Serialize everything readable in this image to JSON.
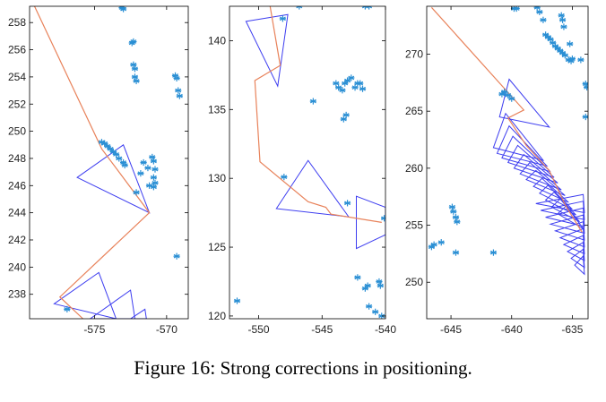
{
  "caption": {
    "label": "Figure 16:",
    "text": "Strong corrections in positioning."
  },
  "colors": {
    "trajectory": "#e8825a",
    "triangles": "#3d3df0",
    "stars": "#2a8fd4",
    "axis": "#000000"
  },
  "chart_data": [
    {
      "type": "scatter",
      "title": "",
      "xlabel": "",
      "ylabel": "",
      "xlim": [
        -579.5,
        -568.5
      ],
      "ylim": [
        236.2,
        259.2
      ],
      "grid": false,
      "xticks": [
        -575,
        -570
      ],
      "yticks": [
        238,
        240,
        242,
        244,
        246,
        248,
        250,
        252,
        254,
        256,
        258
      ],
      "stars": [
        [
          -573.0,
          259.0
        ],
        [
          -573.1,
          259.1
        ],
        [
          -572.4,
          256.5
        ],
        [
          -572.3,
          256.6
        ],
        [
          -572.3,
          254.9
        ],
        [
          -572.2,
          254.6
        ],
        [
          -572.2,
          254.0
        ],
        [
          -572.1,
          253.7
        ],
        [
          -569.4,
          254.1
        ],
        [
          -569.3,
          253.9
        ],
        [
          -569.2,
          253.0
        ],
        [
          -569.1,
          252.6
        ],
        [
          -574.5,
          249.2
        ],
        [
          -574.3,
          249.1
        ],
        [
          -574.1,
          248.9
        ],
        [
          -573.9,
          248.7
        ],
        [
          -573.7,
          248.5
        ],
        [
          -573.5,
          248.3
        ],
        [
          -573.3,
          248.0
        ],
        [
          -573.0,
          247.7
        ],
        [
          -572.9,
          247.5
        ],
        [
          -571.6,
          247.7
        ],
        [
          -571.3,
          247.3
        ],
        [
          -571.0,
          248.1
        ],
        [
          -570.9,
          247.8
        ],
        [
          -570.8,
          247.2
        ],
        [
          -570.9,
          246.6
        ],
        [
          -570.8,
          246.2
        ],
        [
          -570.9,
          245.9
        ],
        [
          -571.2,
          246.0
        ],
        [
          -571.8,
          246.9
        ],
        [
          -572.1,
          245.5
        ],
        [
          -569.3,
          240.8
        ],
        [
          -576.9,
          236.9
        ]
      ],
      "trajectory": [
        [
          -579.2,
          259.3
        ],
        [
          -574.5,
          248.7
        ],
        [
          -571.2,
          244.0
        ],
        [
          -577.4,
          237.8
        ],
        [
          -575.8,
          236.2
        ]
      ],
      "triangles": [
        [
          [
            -576.2,
            246.6
          ],
          [
            -573.0,
            249.0
          ],
          [
            -571.2,
            244.0
          ]
        ],
        [
          [
            -577.8,
            237.3
          ],
          [
            -574.7,
            239.6
          ],
          [
            -573.5,
            236.2
          ]
        ],
        [
          [
            -575.3,
            236.2
          ],
          [
            -572.5,
            238.3
          ],
          [
            -572.2,
            236.2
          ]
        ],
        [
          [
            -572.5,
            236.2
          ],
          [
            -571.5,
            236.9
          ],
          [
            -571.4,
            236.2
          ]
        ]
      ]
    },
    {
      "type": "scatter",
      "title": "",
      "xlabel": "",
      "ylabel": "",
      "xlim": [
        -552.3,
        -540.0
      ],
      "ylim": [
        119.8,
        142.5
      ],
      "grid": false,
      "xticks": [
        -550,
        -545,
        -540
      ],
      "yticks": [
        120,
        125,
        130,
        135,
        140
      ],
      "stars": [
        [
          -546.8,
          142.5
        ],
        [
          -548.1,
          141.6
        ],
        [
          -541.6,
          142.5
        ],
        [
          -541.3,
          142.5
        ],
        [
          -543.9,
          136.9
        ],
        [
          -543.7,
          136.6
        ],
        [
          -543.4,
          136.4
        ],
        [
          -543.2,
          136.9
        ],
        [
          -543.0,
          137.1
        ],
        [
          -542.7,
          137.3
        ],
        [
          -542.4,
          136.6
        ],
        [
          -542.2,
          136.9
        ],
        [
          -542.0,
          136.9
        ],
        [
          -541.8,
          136.5
        ],
        [
          -545.7,
          135.6
        ],
        [
          -543.3,
          134.3
        ],
        [
          -543.1,
          134.6
        ],
        [
          -548.0,
          130.1
        ],
        [
          -543.0,
          128.2
        ],
        [
          -542.2,
          122.8
        ],
        [
          -541.4,
          122.2
        ],
        [
          -541.6,
          122.0
        ],
        [
          -540.5,
          122.5
        ],
        [
          -540.4,
          122.2
        ],
        [
          -541.3,
          120.7
        ],
        [
          -540.8,
          120.3
        ],
        [
          -540.3,
          120.0
        ],
        [
          -540.1,
          127.1
        ],
        [
          -551.7,
          121.1
        ]
      ],
      "trajectory": [
        [
          -549.1,
          142.5
        ],
        [
          -548.3,
          138.2
        ],
        [
          -550.3,
          137.1
        ],
        [
          -549.9,
          131.2
        ],
        [
          -546.1,
          128.3
        ],
        [
          -544.7,
          127.9
        ],
        [
          -544.3,
          127.4
        ],
        [
          -540.3,
          126.8
        ]
      ],
      "triangles": [
        [
          [
            -551.0,
            141.4
          ],
          [
            -547.7,
            141.9
          ],
          [
            -548.5,
            136.7
          ]
        ],
        [
          [
            -548.6,
            127.8
          ],
          [
            -546.1,
            131.3
          ],
          [
            -542.9,
            127.2
          ]
        ],
        [
          [
            -542.3,
            128.7
          ],
          [
            -540.0,
            127.9
          ],
          [
            -540.0,
            125.9
          ],
          [
            -542.3,
            124.9
          ]
        ]
      ]
    },
    {
      "type": "scatter",
      "title": "",
      "xlabel": "",
      "ylabel": "",
      "xlim": [
        -647.0,
        -633.7
      ],
      "ylim": [
        246.8,
        274.2
      ],
      "grid": false,
      "xticks": [
        -645,
        -640,
        -635
      ],
      "yticks": [
        250,
        255,
        260,
        265,
        270
      ],
      "stars": [
        [
          -639.8,
          274.0
        ],
        [
          -639.6,
          274.0
        ],
        [
          -637.9,
          274.1
        ],
        [
          -637.7,
          273.7
        ],
        [
          -637.4,
          273.0
        ],
        [
          -637.2,
          271.7
        ],
        [
          -637.0,
          271.5
        ],
        [
          -636.8,
          271.3
        ],
        [
          -636.6,
          271.0
        ],
        [
          -636.4,
          270.7
        ],
        [
          -636.2,
          270.5
        ],
        [
          -636.0,
          270.3
        ],
        [
          -635.8,
          270.1
        ],
        [
          -635.6,
          269.9
        ],
        [
          -635.3,
          269.5
        ],
        [
          -635.1,
          269.4
        ],
        [
          -635.9,
          273.4
        ],
        [
          -635.8,
          273.0
        ],
        [
          -635.7,
          272.4
        ],
        [
          -635.2,
          270.9
        ],
        [
          -635.0,
          269.6
        ],
        [
          -634.3,
          269.5
        ],
        [
          -633.9,
          267.4
        ],
        [
          -633.8,
          267.1
        ],
        [
          -633.9,
          264.5
        ],
        [
          -640.8,
          266.5
        ],
        [
          -640.6,
          266.7
        ],
        [
          -640.3,
          266.4
        ],
        [
          -640.0,
          266.1
        ],
        [
          -644.9,
          256.6
        ],
        [
          -644.8,
          256.2
        ],
        [
          -644.6,
          255.7
        ],
        [
          -644.5,
          255.3
        ],
        [
          -645.8,
          253.5
        ],
        [
          -646.4,
          253.3
        ],
        [
          -646.6,
          253.1
        ],
        [
          -641.5,
          252.6
        ],
        [
          -644.6,
          252.6
        ]
      ],
      "trajectory": [
        [
          -646.6,
          274.1
        ],
        [
          -639.0,
          265.1
        ],
        [
          -640.3,
          264.4
        ],
        [
          -638.8,
          262.0
        ],
        [
          -636.9,
          259.8
        ],
        [
          -635.6,
          256.8
        ],
        [
          -634.2,
          254.4
        ]
      ],
      "triangles": [
        [
          [
            -641.0,
            264.5
          ],
          [
            -640.2,
            267.8
          ],
          [
            -636.9,
            263.6
          ]
        ],
        [
          [
            -641.5,
            261.8
          ],
          [
            -640.5,
            264.8
          ],
          [
            -637.4,
            260.7
          ]
        ],
        [
          [
            -641.2,
            261.3
          ],
          [
            -640.2,
            263.7
          ],
          [
            -637.1,
            260.2
          ]
        ],
        [
          [
            -640.8,
            260.9
          ],
          [
            -639.9,
            262.8
          ],
          [
            -636.8,
            259.7
          ]
        ],
        [
          [
            -640.3,
            260.5
          ],
          [
            -639.5,
            262.0
          ],
          [
            -636.5,
            259.2
          ]
        ],
        [
          [
            -639.8,
            260.0
          ],
          [
            -639.0,
            261.2
          ],
          [
            -636.2,
            258.7
          ]
        ],
        [
          [
            -639.3,
            259.5
          ],
          [
            -638.5,
            260.5
          ],
          [
            -635.9,
            258.1
          ]
        ],
        [
          [
            -638.8,
            259.0
          ],
          [
            -638.0,
            259.8
          ],
          [
            -635.6,
            257.6
          ]
        ],
        [
          [
            -638.2,
            258.4
          ],
          [
            -637.5,
            259.1
          ],
          [
            -635.3,
            257.0
          ]
        ],
        [
          [
            -637.7,
            257.8
          ],
          [
            -637.0,
            258.5
          ],
          [
            -635.0,
            256.4
          ]
        ],
        [
          [
            -637.2,
            257.2
          ],
          [
            -636.5,
            257.9
          ],
          [
            -634.7,
            255.9
          ]
        ],
        [
          [
            -636.7,
            256.6
          ],
          [
            -636.0,
            257.3
          ],
          [
            -634.4,
            255.3
          ]
        ],
        [
          [
            -636.2,
            256.0
          ],
          [
            -635.5,
            256.7
          ],
          [
            -634.1,
            254.7
          ]
        ],
        [
          [
            -638.0,
            256.9
          ],
          [
            -634.1,
            257.7
          ],
          [
            -634.0,
            256.1
          ]
        ],
        [
          [
            -637.6,
            256.3
          ],
          [
            -634.1,
            257.1
          ],
          [
            -634.0,
            255.5
          ]
        ],
        [
          [
            -637.2,
            255.7
          ],
          [
            -634.1,
            256.5
          ],
          [
            -634.0,
            254.9
          ]
        ],
        [
          [
            -636.8,
            255.1
          ],
          [
            -634.1,
            255.9
          ],
          [
            -634.0,
            254.3
          ]
        ],
        [
          [
            -636.4,
            254.5
          ],
          [
            -634.1,
            255.3
          ],
          [
            -634.0,
            253.7
          ]
        ],
        [
          [
            -636.0,
            253.9
          ],
          [
            -634.1,
            254.7
          ],
          [
            -634.0,
            253.1
          ]
        ],
        [
          [
            -635.7,
            253.3
          ],
          [
            -634.1,
            254.1
          ],
          [
            -634.0,
            252.5
          ]
        ],
        [
          [
            -635.4,
            252.7
          ],
          [
            -634.1,
            253.5
          ],
          [
            -634.0,
            251.9
          ]
        ],
        [
          [
            -635.1,
            252.1
          ],
          [
            -634.1,
            252.9
          ],
          [
            -634.0,
            251.3
          ]
        ],
        [
          [
            -634.8,
            251.5
          ],
          [
            -634.1,
            252.3
          ],
          [
            -634.0,
            250.7
          ]
        ]
      ]
    }
  ]
}
